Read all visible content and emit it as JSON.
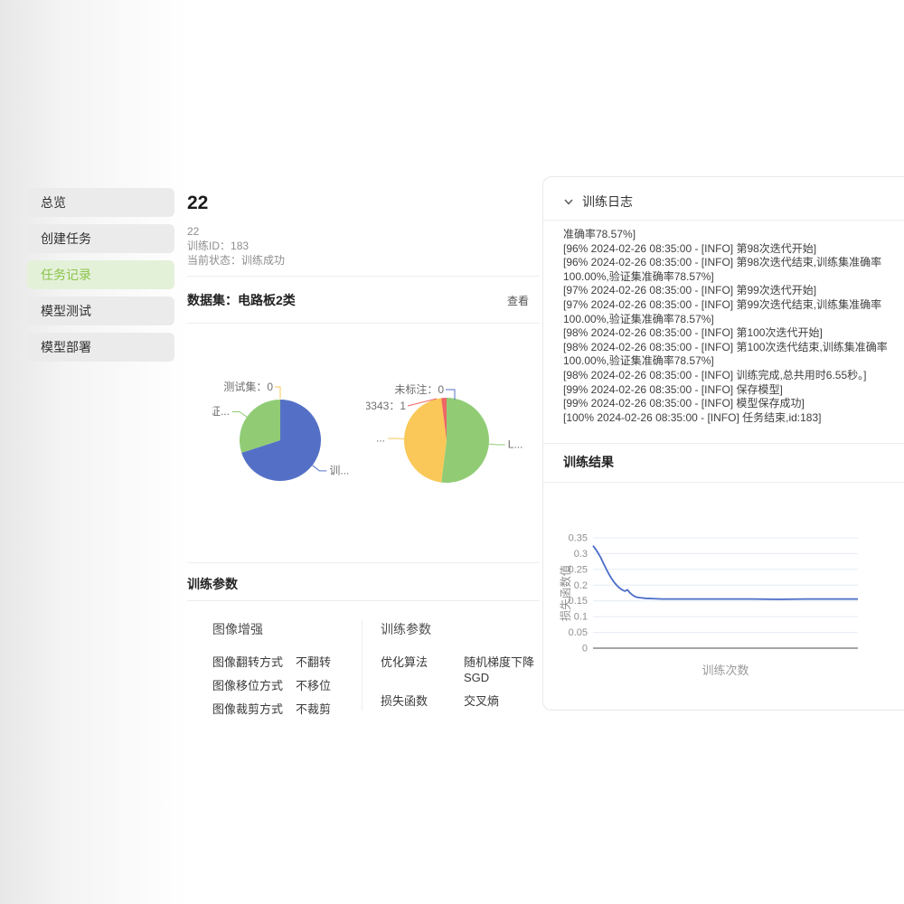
{
  "sidebar": {
    "items": [
      {
        "label": "总览",
        "active": false
      },
      {
        "label": "创建任务",
        "active": false
      },
      {
        "label": "任务记录",
        "active": true
      },
      {
        "label": "模型测试",
        "active": false
      },
      {
        "label": "模型部署",
        "active": false
      }
    ]
  },
  "task": {
    "title": "22",
    "name": "22",
    "id_label": "训练ID：",
    "id": "183",
    "status_label": "当前状态：",
    "status": "训练成功"
  },
  "dataset": {
    "heading": "数据集：电路板2类",
    "view_label": "查看"
  },
  "train_params": {
    "heading": "训练参数",
    "groups": [
      {
        "title": "图像增强",
        "rows": [
          {
            "label": "图像翻转方式",
            "value": "不翻转"
          },
          {
            "label": "图像移位方式",
            "value": "不移位"
          },
          {
            "label": "图像裁剪方式",
            "value": "不裁剪"
          }
        ]
      },
      {
        "title": "训练参数",
        "rows": [
          {
            "label": "优化算法",
            "value": "随机梯度下降 SGD"
          },
          {
            "label": "损失函数",
            "value": "交叉熵"
          }
        ]
      }
    ]
  },
  "log": {
    "heading": "训练日志",
    "entries": [
      "准确率78.57%]",
      "[96% 2024-02-26 08:35:00 - [INFO] 第98次迭代开始]",
      "[96% 2024-02-26 08:35:00 - [INFO] 第98次迭代结束,训练集准确率100.00%,验证集准确率78.57%]",
      "[97% 2024-02-26 08:35:00 - [INFO] 第99次迭代开始]",
      "[97% 2024-02-26 08:35:00 - [INFO] 第99次迭代结束,训练集准确率100.00%,验证集准确率78.57%]",
      "[98% 2024-02-26 08:35:00 - [INFO] 第100次迭代开始]",
      "[98% 2024-02-26 08:35:00 - [INFO] 第100次迭代结束,训练集准确率100.00%,验证集准确率78.57%]",
      "[98% 2024-02-26 08:35:00 - [INFO] 训练完成,总共用时6.55秒。]",
      "[99% 2024-02-26 08:35:00 - [INFO] 保存模型]",
      "[99% 2024-02-26 08:35:00 - [INFO] 模型保存成功]",
      "[100% 2024-02-26 08:35:00 - [INFO] 任务结束,id:183]"
    ]
  },
  "result": {
    "heading": "训练结果"
  },
  "chart_data": [
    {
      "type": "pie",
      "name": "dataset-split-pie",
      "legend_position": "none",
      "slices": [
        {
          "label": "训...",
          "value": 70,
          "color": "#5470c6",
          "angle": 128
        },
        {
          "label": "验证...",
          "value": 30,
          "color": "#91cc75",
          "angle": 305
        },
        {
          "label": "测试集：0",
          "value": 0,
          "color": "#fac858",
          "leader": [
            [
              69,
              13
            ],
            [
              75,
              13
            ],
            [
              75,
              26
            ]
          ],
          "text": [
            67,
            17,
            "end"
          ]
        }
      ]
    },
    {
      "type": "pie",
      "name": "dataset-labels-pie",
      "legend_position": "none",
      "slices": [
        {
          "label": "L...",
          "value": 52,
          "color": "#91cc75",
          "angle": 95
        },
        {
          "label": "...",
          "value": 46,
          "color": "#fac858",
          "angle": 272
        },
        {
          "label": "3343：1",
          "value": 2,
          "color": "#ee6666",
          "leader": [
            [
              46,
              34
            ],
            [
              78,
              26
            ]
          ],
          "text": [
            44,
            38,
            "end"
          ]
        },
        {
          "label": "未标注：0",
          "value": 0,
          "color": "#5470c6",
          "leader": [
            [
              88,
              16
            ],
            [
              98,
              16
            ],
            [
              98,
              27
            ]
          ],
          "text": [
            86,
            20,
            "end"
          ]
        }
      ]
    },
    {
      "type": "line",
      "name": "loss-curve",
      "title": "",
      "xlabel": "训练次数",
      "ylabel": "损失函数值",
      "xlim": [
        0,
        100
      ],
      "ylim": [
        0,
        0.35
      ],
      "yticks": [
        0,
        0.05,
        0.1,
        0.15,
        0.2,
        0.25,
        0.3,
        0.35
      ],
      "grid": true,
      "color": "#4a6cc8",
      "points": [
        [
          0,
          0.325
        ],
        [
          1,
          0.314
        ],
        [
          2,
          0.301
        ],
        [
          3,
          0.286
        ],
        [
          4,
          0.268
        ],
        [
          5,
          0.251
        ],
        [
          6,
          0.235
        ],
        [
          7,
          0.221
        ],
        [
          8,
          0.209
        ],
        [
          9,
          0.199
        ],
        [
          10,
          0.191
        ],
        [
          11,
          0.185
        ],
        [
          12,
          0.181
        ],
        [
          13,
          0.185
        ],
        [
          14,
          0.175
        ],
        [
          15,
          0.168
        ],
        [
          16,
          0.163
        ],
        [
          17,
          0.161
        ],
        [
          18,
          0.16
        ],
        [
          20,
          0.158
        ],
        [
          23,
          0.157
        ],
        [
          26,
          0.156
        ],
        [
          30,
          0.156
        ],
        [
          40,
          0.156
        ],
        [
          50,
          0.156
        ],
        [
          60,
          0.156
        ],
        [
          70,
          0.155
        ],
        [
          80,
          0.156
        ],
        [
          90,
          0.156
        ],
        [
          100,
          0.156
        ]
      ]
    }
  ]
}
